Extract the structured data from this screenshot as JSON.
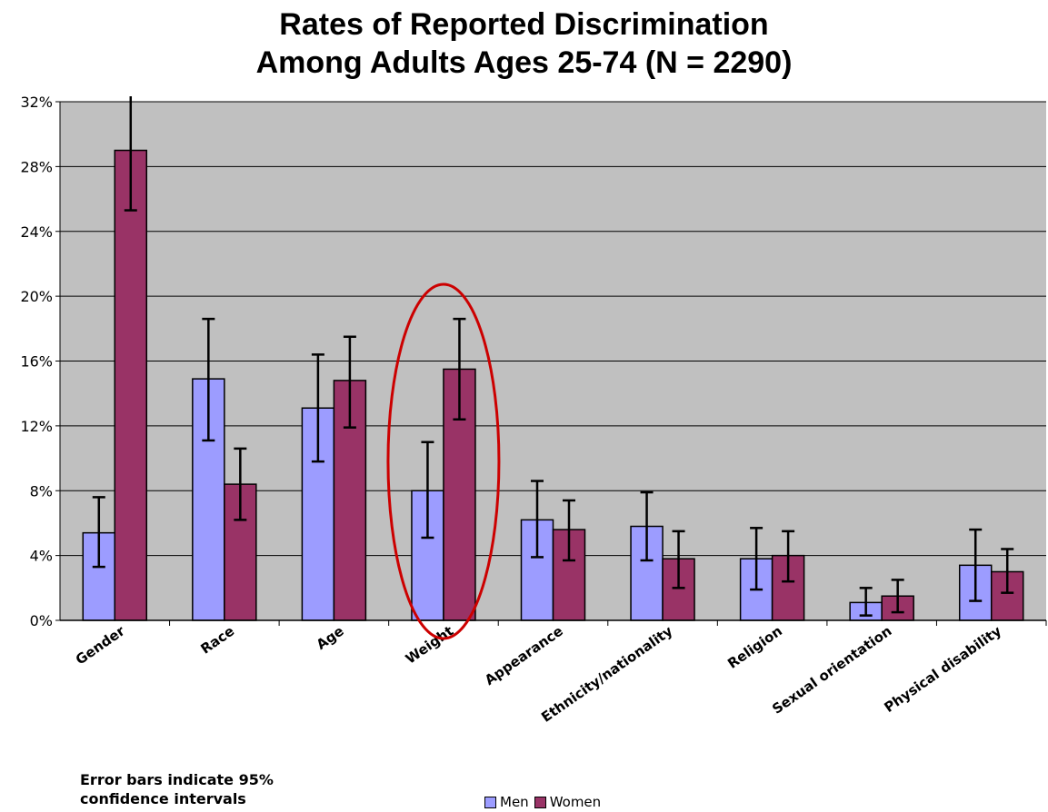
{
  "chart_title_line1": "Rates of Reported Discrimination",
  "chart_title_line2": "Among Adults Ages 25-74  (N = 2290)",
  "footnote_line1": "Error bars indicate 95%",
  "footnote_line2": "confidence intervals",
  "legend": {
    "men": "Men",
    "women": "Women"
  },
  "colors": {
    "men": "#9c9cff",
    "women": "#993366",
    "plot_bg": "#c0c0c0",
    "highlight": "#cc0000"
  },
  "chart_data": {
    "type": "bar",
    "categories": [
      "Gender",
      "Race",
      "Age",
      "Weight",
      "Appearance",
      "Ethnicity/nationality",
      "Religion",
      "Sexual orientation",
      "Physical disability"
    ],
    "series": [
      {
        "name": "Men",
        "values": [
          5.4,
          14.9,
          13.1,
          8.0,
          6.2,
          5.8,
          3.8,
          1.1,
          3.4
        ],
        "ci_low": [
          3.3,
          11.1,
          9.8,
          5.1,
          3.9,
          3.7,
          1.9,
          0.3,
          1.2
        ],
        "ci_high": [
          7.6,
          18.6,
          16.4,
          11.0,
          8.6,
          7.9,
          5.7,
          2.0,
          5.6
        ]
      },
      {
        "name": "Women",
        "values": [
          29.0,
          8.4,
          14.8,
          15.5,
          5.6,
          3.8,
          4.0,
          1.5,
          3.0
        ],
        "ci_low": [
          25.3,
          6.2,
          11.9,
          12.4,
          3.7,
          2.0,
          2.4,
          0.5,
          1.7
        ],
        "ci_high": [
          32.7,
          10.6,
          17.5,
          18.6,
          7.4,
          5.5,
          5.5,
          2.5,
          4.4
        ]
      }
    ],
    "y_ticks": [
      "0%",
      "4%",
      "8%",
      "12%",
      "16%",
      "20%",
      "24%",
      "28%",
      "32%"
    ],
    "ylim": [
      0,
      32
    ],
    "grid": true,
    "highlighted_category": "Weight",
    "legend_position": "bottom"
  }
}
